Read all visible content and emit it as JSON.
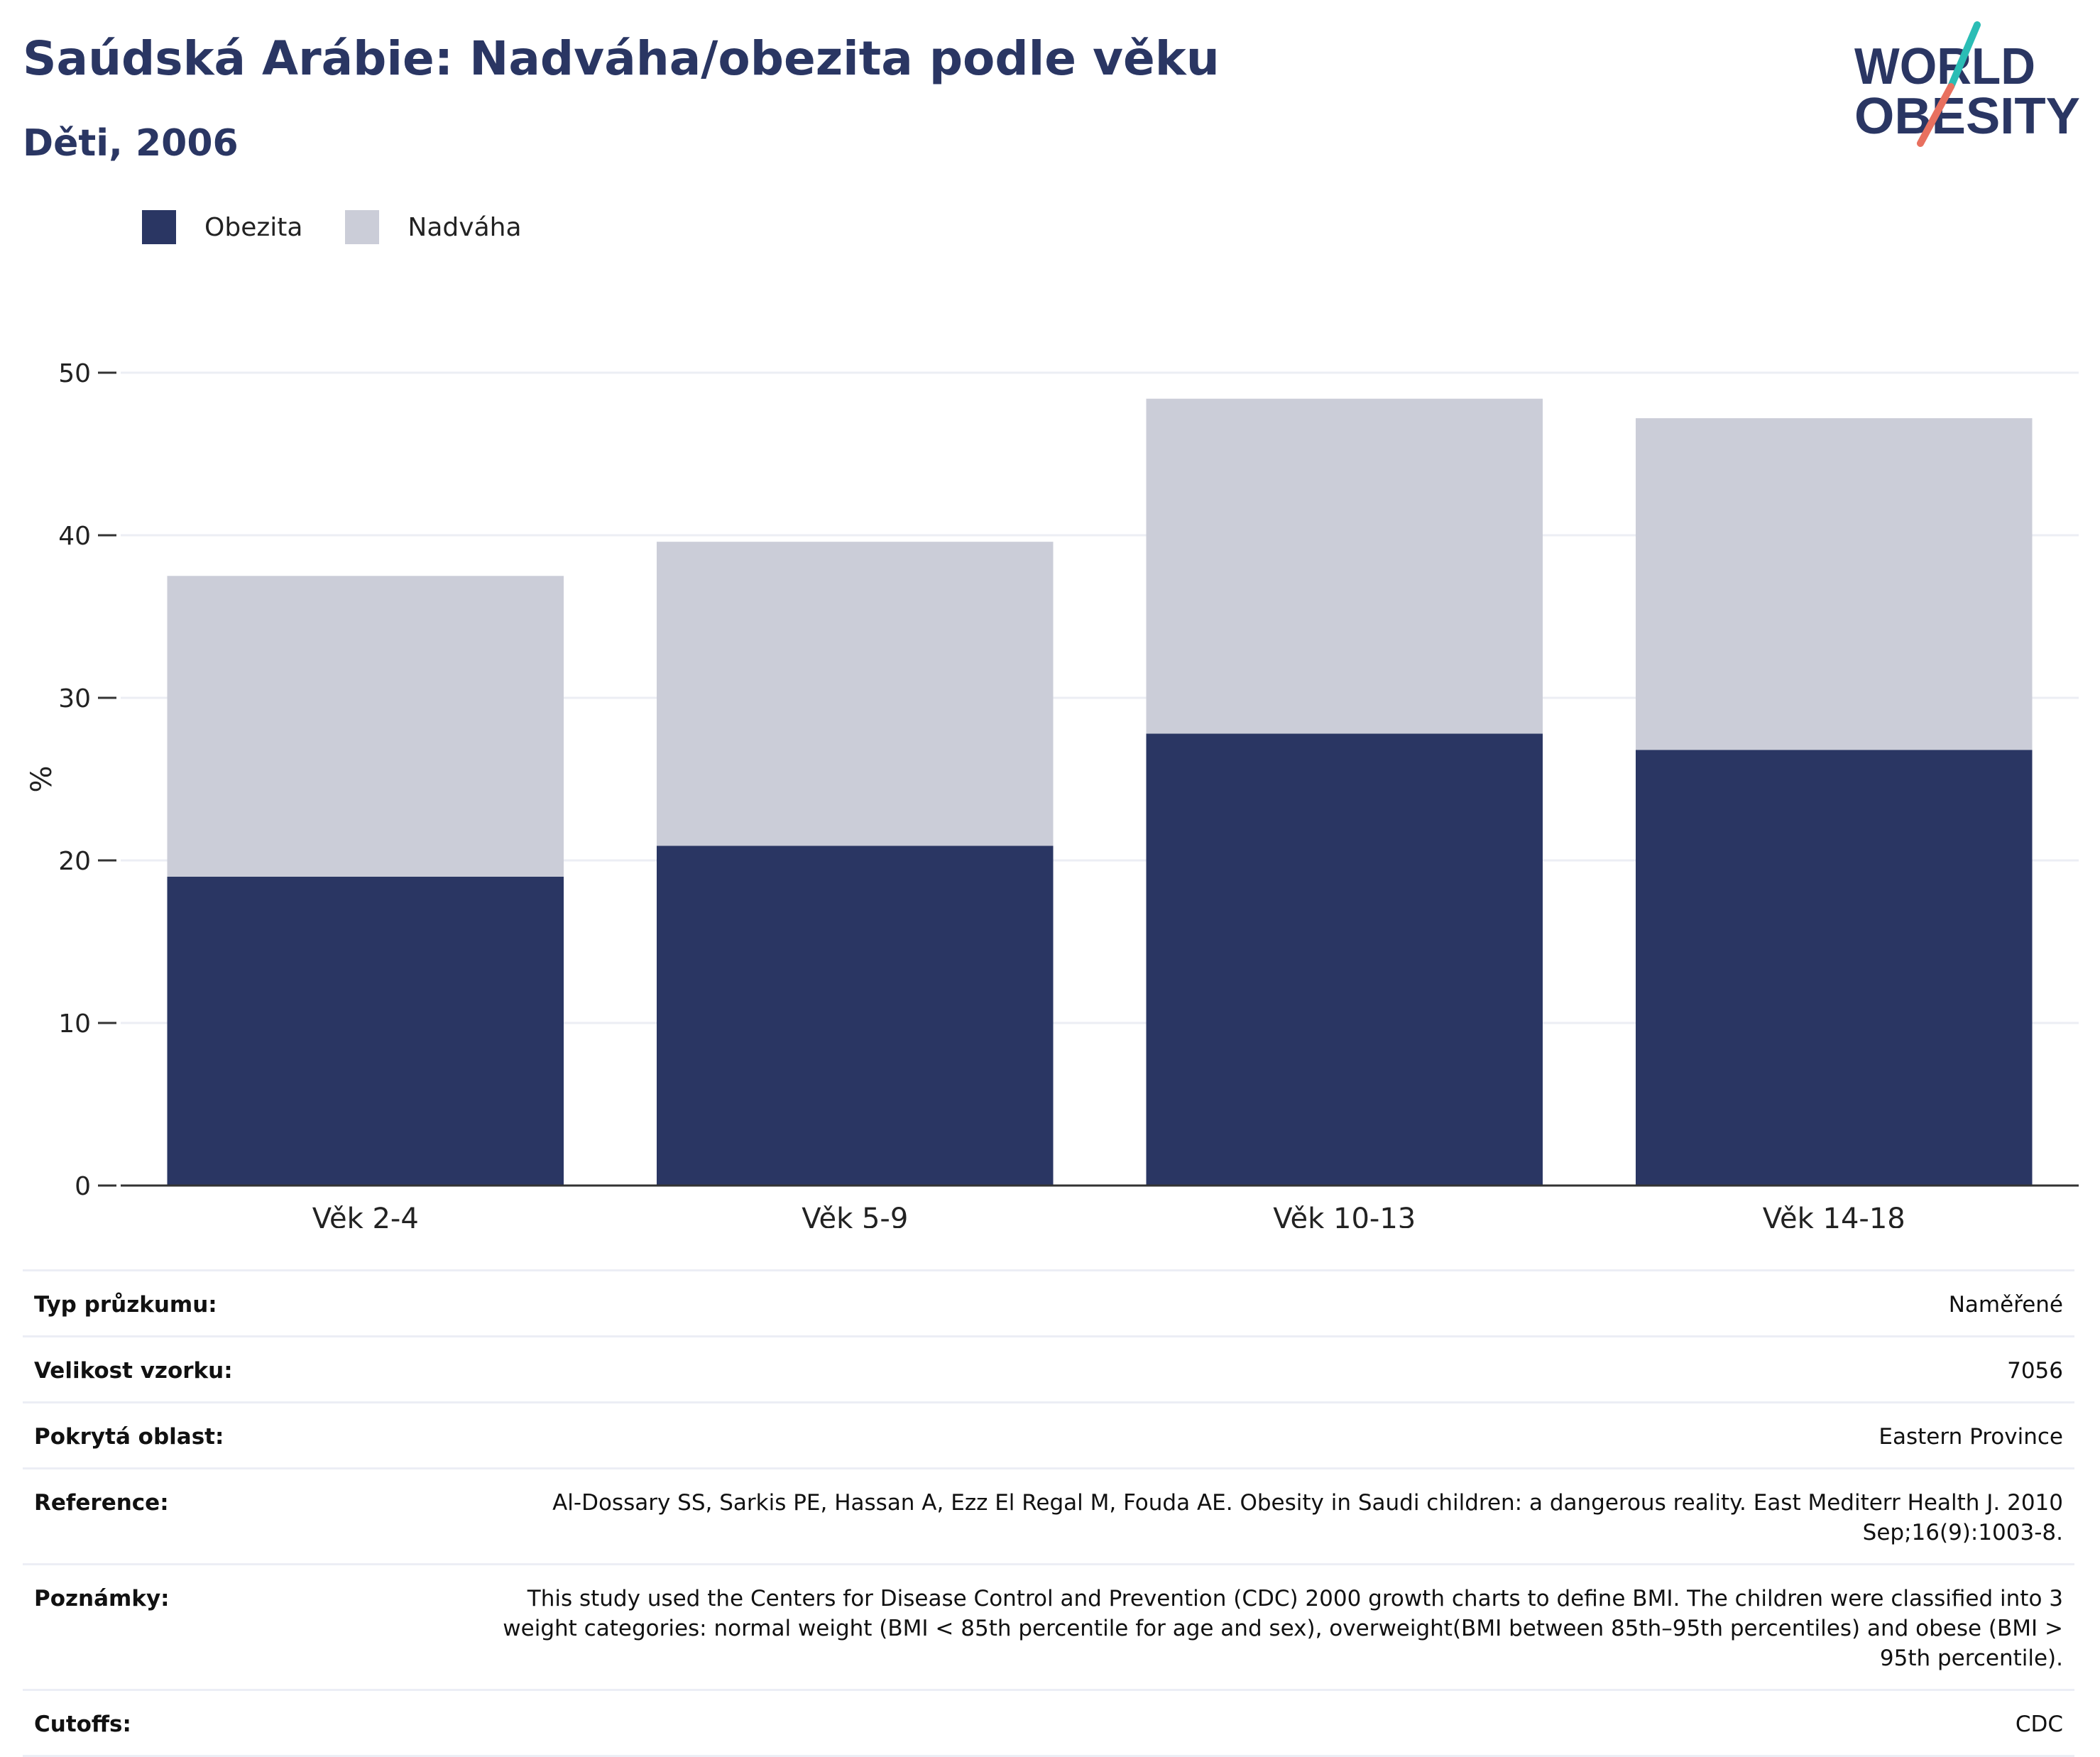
{
  "title": "Saúdská Arábie: Nadváha/obezita podle věku",
  "subtitle": "Děti, 2006",
  "logo": {
    "line1": "WORLD",
    "line2": "OBESITY",
    "accent_colors": [
      "#2bbdb5",
      "#e8705f"
    ]
  },
  "legend": [
    {
      "label": "Obezita",
      "color": "#2a3663"
    },
    {
      "label": "Nadváha",
      "color": "#cbcdd8"
    }
  ],
  "chart_data": {
    "type": "bar",
    "stacked": true,
    "categories": [
      "Věk 2-4",
      "Věk 5-9",
      "Věk 10-13",
      "Věk 14-18"
    ],
    "series": [
      {
        "name": "Obezita",
        "values": [
          19.0,
          20.9,
          27.8,
          26.8
        ],
        "color": "#2a3663"
      },
      {
        "name": "Nadváha",
        "values": [
          18.5,
          18.7,
          20.6,
          20.4
        ],
        "color": "#cbcdd8"
      }
    ],
    "ylabel": "%",
    "ylim": [
      0,
      50
    ],
    "yticks": [
      0,
      10,
      20,
      30,
      40,
      50
    ],
    "grid": true,
    "legend_position": "top-left"
  },
  "details": [
    {
      "label": "Typ průzkumu:",
      "value": "Naměřené"
    },
    {
      "label": "Velikost vzorku:",
      "value": "7056"
    },
    {
      "label": "Pokrytá oblast:",
      "value": "Eastern Province"
    },
    {
      "label": "Reference:",
      "value": "Al-Dossary SS, Sarkis PE, Hassan A, Ezz El Regal M, Fouda AE. Obesity in Saudi children: a dangerous reality. East Mediterr Health J. 2010 Sep;16(9):1003-8."
    },
    {
      "label": "Poznámky:",
      "value": "This study used the Centers for Disease Control and Prevention (CDC) 2000 growth charts to define BMI. The children were classified into 3 weight categories: normal weight (BMI < 85th percentile for age and sex), overweight(BMI between 85th–95th percentiles) and obese (BMI > 95th percentile)."
    },
    {
      "label": "Cutoffs:",
      "value": "CDC"
    }
  ]
}
